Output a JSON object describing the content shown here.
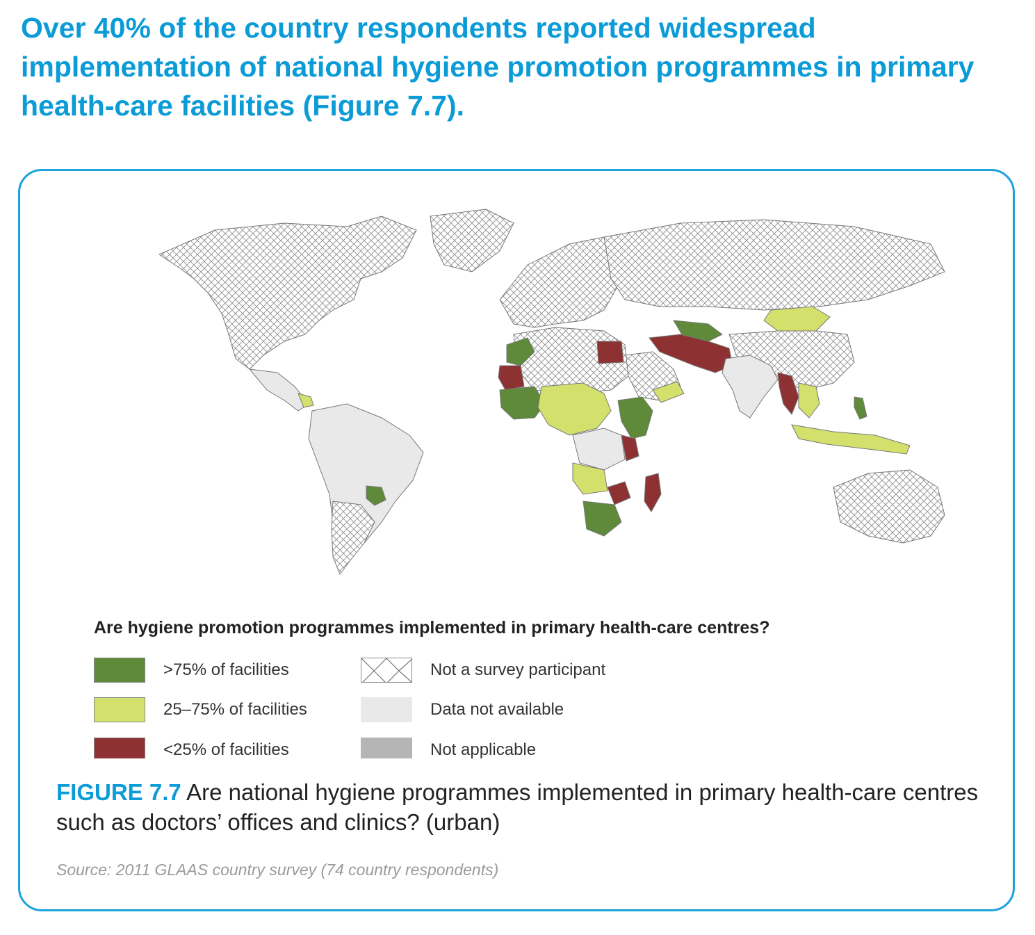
{
  "headline": "Over 40% of the country respondents reported widespread implementation of national hygiene promotion programmes in primary health-care facilities (Figure 7.7).",
  "map": {
    "legend_title": "Are hygiene promotion programmes implemented in primary health-care centres?",
    "legend": [
      {
        "label": ">75% of facilities",
        "color": "#5e8a3a",
        "pattern": "solid"
      },
      {
        "label": "25–75% of facilities",
        "color": "#d3e06c",
        "pattern": "solid"
      },
      {
        "label": "<25% of facilities",
        "color": "#8e3132",
        "pattern": "solid"
      },
      {
        "label": "Not a survey participant",
        "color": "#ffffff",
        "pattern": "crosshatch"
      },
      {
        "label": "Data not available",
        "color": "#e9e9e9",
        "pattern": "solid"
      },
      {
        "label": "Not applicable",
        "color": "#b5b5b5",
        "pattern": "solid"
      }
    ]
  },
  "caption": {
    "label": "FIGURE 7.7",
    "text": " Are national hygiene programmes implemented in primary health-care centres such as doctors’ offices and clinics? (urban)"
  },
  "source": "Source: 2011 GLAAS country survey (74 country respondents)"
}
